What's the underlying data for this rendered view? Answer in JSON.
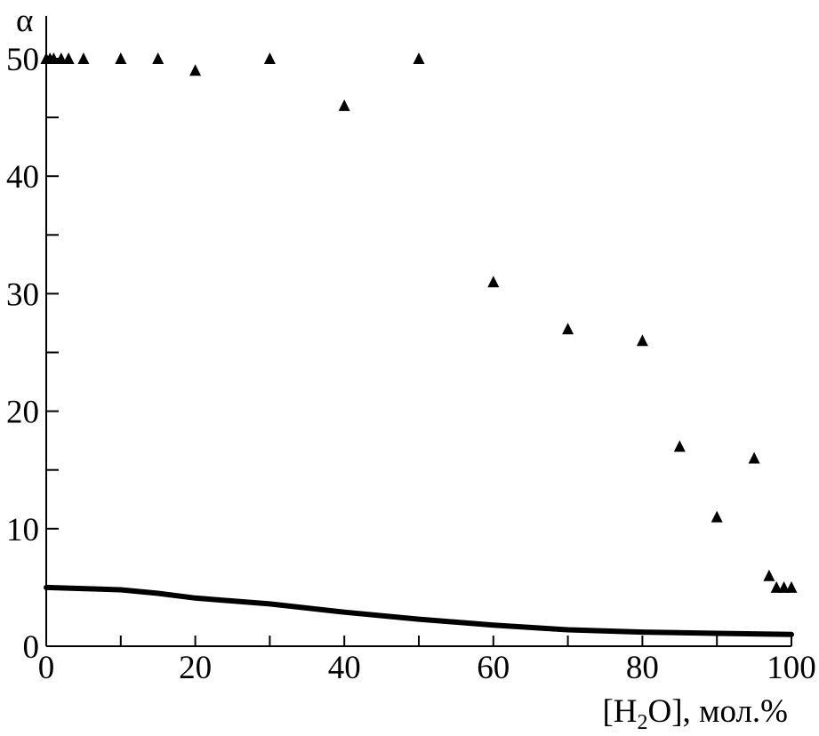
{
  "chart_data": {
    "type": "scatter",
    "title": "",
    "ylabel": "α",
    "xlabel": {
      "open": "[H",
      "sub": "2",
      "close": "O], мол.%"
    },
    "xlim": [
      0,
      100
    ],
    "ylim": [
      0,
      50
    ],
    "x_ticks": [
      0,
      20,
      40,
      60,
      80,
      100
    ],
    "x_tick_labels": [
      "0",
      "20",
      "40",
      "60",
      "80",
      "100"
    ],
    "x_minor_ticks": [
      10,
      30,
      50,
      70,
      90
    ],
    "y_ticks": [
      0,
      10,
      20,
      30,
      40,
      50
    ],
    "y_tick_labels": [
      "0",
      "10",
      "20",
      "30",
      "40",
      "50"
    ],
    "y_minor_ticks": [
      5,
      15,
      25,
      35,
      45
    ],
    "grid": false,
    "series": [
      {
        "marker": "triangle",
        "color": "#000000",
        "points": [
          {
            "x": 0,
            "y": 50
          },
          {
            "x": 0.5,
            "y": 50
          },
          {
            "x": 1,
            "y": 50
          },
          {
            "x": 2,
            "y": 50
          },
          {
            "x": 3,
            "y": 50
          },
          {
            "x": 5,
            "y": 50
          },
          {
            "x": 10,
            "y": 50
          },
          {
            "x": 15,
            "y": 50
          },
          {
            "x": 20,
            "y": 49
          },
          {
            "x": 30,
            "y": 50
          },
          {
            "x": 40,
            "y": 46
          },
          {
            "x": 50,
            "y": 50
          },
          {
            "x": 60,
            "y": 31
          },
          {
            "x": 70,
            "y": 27
          },
          {
            "x": 80,
            "y": 26
          },
          {
            "x": 85,
            "y": 17
          },
          {
            "x": 90,
            "y": 11
          },
          {
            "x": 95,
            "y": 16
          },
          {
            "x": 97,
            "y": 6
          },
          {
            "x": 98,
            "y": 5
          },
          {
            "x": 99,
            "y": 5
          },
          {
            "x": 100,
            "y": 5
          }
        ]
      },
      {
        "marker": "line",
        "color": "#000000",
        "points": [
          {
            "x": 0,
            "y": 5.0
          },
          {
            "x": 10,
            "y": 4.8
          },
          {
            "x": 15,
            "y": 4.5
          },
          {
            "x": 20,
            "y": 4.1
          },
          {
            "x": 30,
            "y": 3.6
          },
          {
            "x": 40,
            "y": 2.9
          },
          {
            "x": 50,
            "y": 2.3
          },
          {
            "x": 60,
            "y": 1.8
          },
          {
            "x": 70,
            "y": 1.4
          },
          {
            "x": 80,
            "y": 1.2
          },
          {
            "x": 90,
            "y": 1.1
          },
          {
            "x": 100,
            "y": 1.0
          }
        ]
      }
    ]
  }
}
